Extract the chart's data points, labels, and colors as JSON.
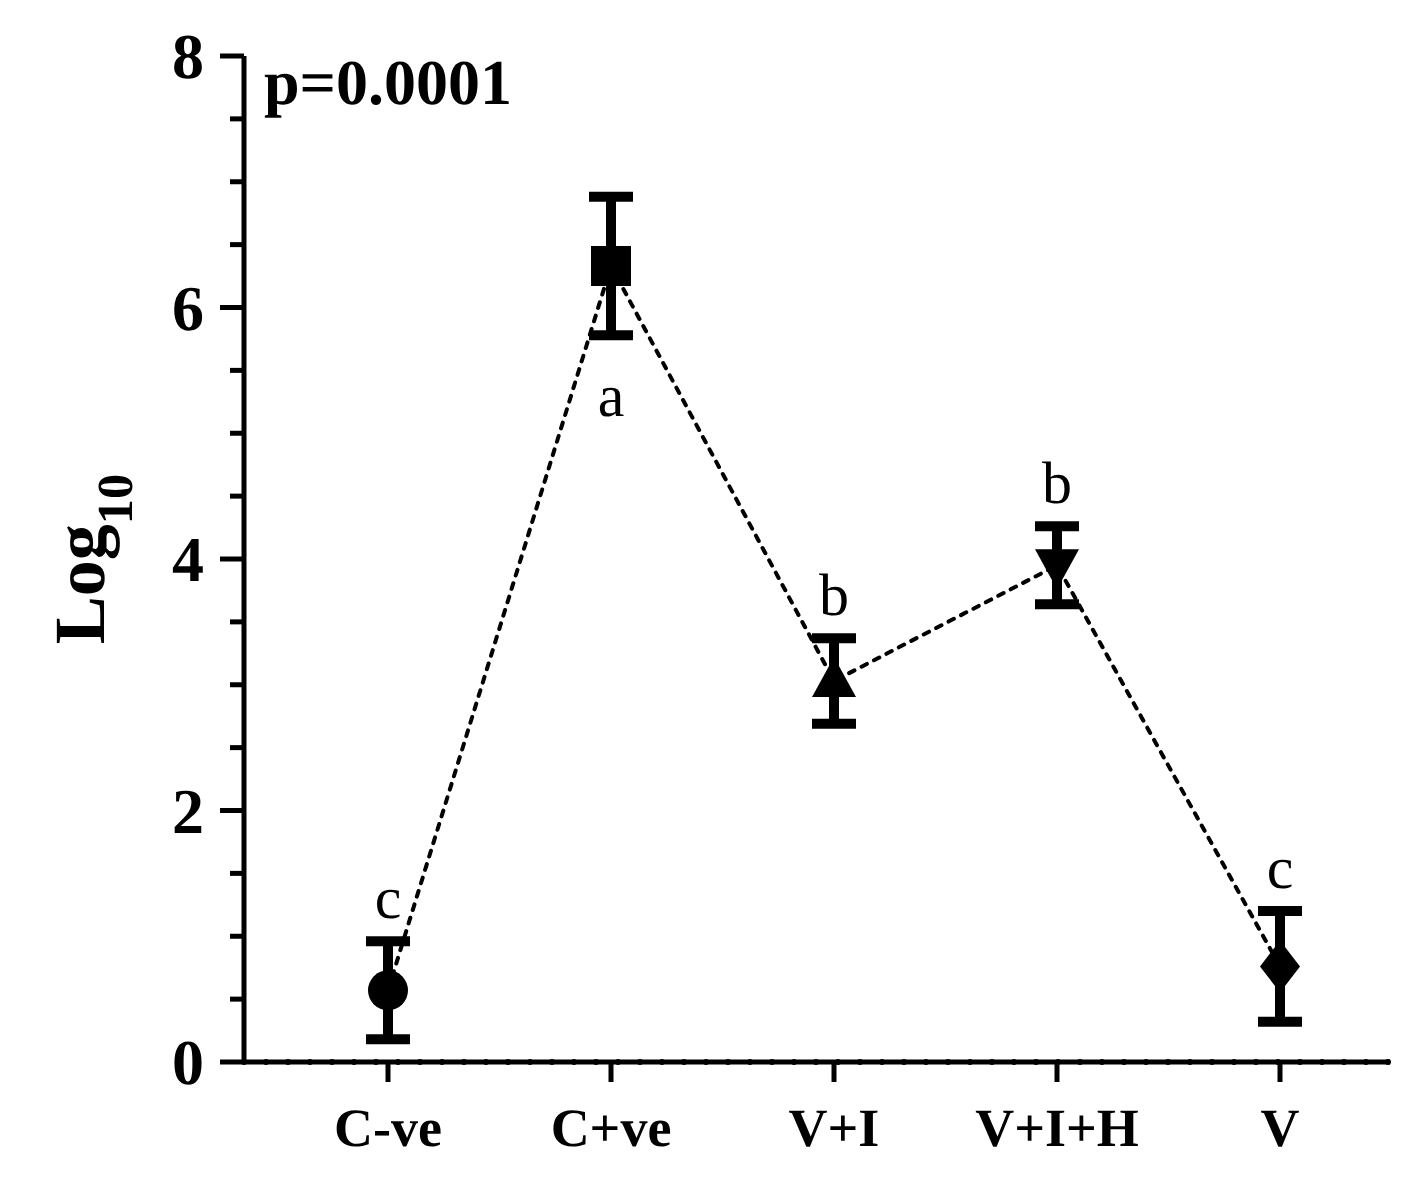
{
  "chart_data": {
    "type": "line",
    "ylabel": "Log$_{10}$",
    "categories": [
      "C-ve",
      "C+ve",
      "V+I",
      "V+I+H",
      "V"
    ],
    "ylim": [
      0,
      8
    ],
    "yticks": [
      0,
      {
        "value": 0.5,
        "label": null
      },
      {
        "value": 1,
        "label": null
      },
      {
        "value": 1.5,
        "label": null
      },
      2,
      {
        "value": 2.5,
        "label": null
      },
      {
        "value": 3,
        "label": null
      },
      {
        "value": 3.5,
        "label": null
      },
      4,
      {
        "value": 4.5,
        "label": null
      },
      {
        "value": 5,
        "label": null
      },
      {
        "value": 5.5,
        "label": null
      },
      6,
      {
        "value": 6.5,
        "label": null
      },
      {
        "value": 7,
        "label": null
      },
      {
        "value": 7.5,
        "label": null
      },
      8
    ],
    "grid": false,
    "series": [
      {
        "color": "#000000",
        "values": [
          0.57,
          6.33,
          3.03,
          3.95,
          0.76
        ],
        "marker": "none",
        "line_style": "dotted"
      },
      {
        "type": "scatter",
        "color": "#000000",
        "x": [
          "C-ve"
        ],
        "values": [
          0.57
        ],
        "errors": [
          0.39
        ],
        "marker": "circle"
      },
      {
        "type": "scatter",
        "color": "#000000",
        "x": [
          "C+ve"
        ],
        "values": [
          6.33
        ],
        "errors": [
          0.55
        ],
        "marker": "square"
      },
      {
        "type": "scatter",
        "color": "#000000",
        "x": [
          "V+I"
        ],
        "values": [
          3.03
        ],
        "errors": [
          0.34
        ],
        "marker": "triangle"
      },
      {
        "type": "scatter",
        "color": "#000000",
        "x": [
          "V+I+H"
        ],
        "values": [
          3.95
        ],
        "errors": [
          0.31
        ],
        "marker": "triangle-down"
      },
      {
        "type": "scatter",
        "color": "#000000",
        "x": [
          "V"
        ],
        "values": [
          0.76
        ],
        "errors": [
          0.44
        ],
        "marker": "diamond"
      }
    ],
    "ref_lines": [
      {
        "axis": "y",
        "value": 0,
        "line_style": "dotted",
        "color": "#000000"
      }
    ],
    "annotations": [
      "p=0.0001",
      "c",
      "a",
      "b",
      "b",
      "c"
    ]
  }
}
